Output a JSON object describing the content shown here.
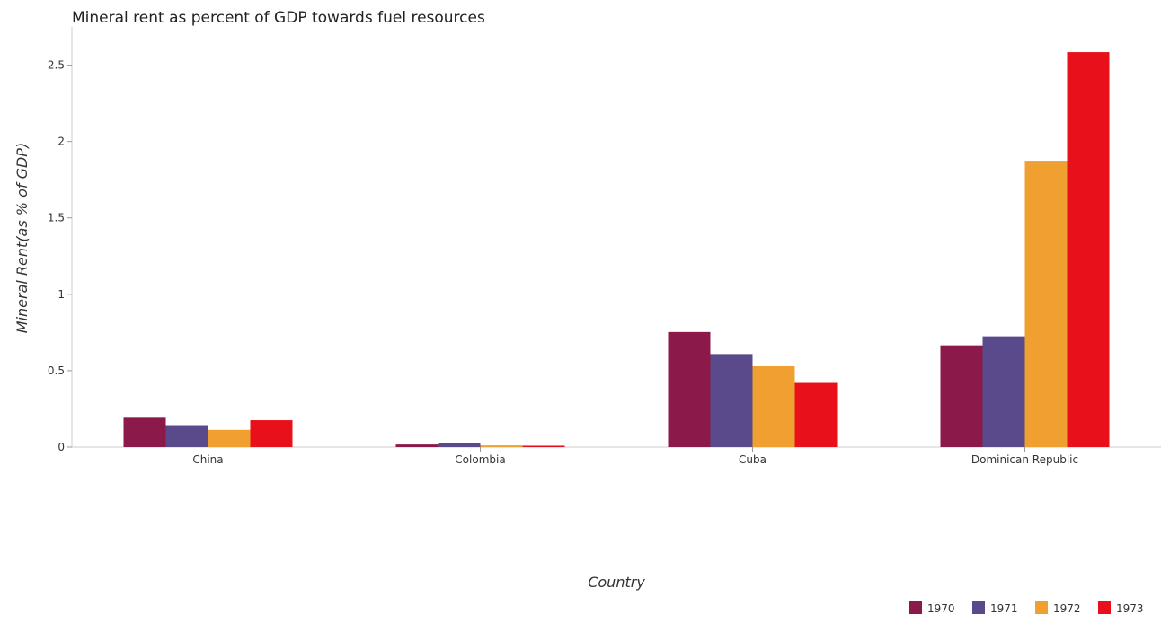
{
  "chart_data": {
    "type": "bar",
    "title": "Mineral rent as percent of GDP towards fuel resources",
    "xlabel": "Country",
    "ylabel": "Mineral Rent(as % of GDP)",
    "categories": [
      "China",
      "Colombia",
      "Cuba",
      "Dominican Republic"
    ],
    "ylim": [
      0,
      2.75
    ],
    "yticks": [
      0,
      0.5,
      1,
      1.5,
      2,
      2.5
    ],
    "ytick_labels": [
      "0",
      "0.5",
      "1",
      "1.5",
      "2",
      "2.5"
    ],
    "grid": false,
    "legend_position": "bottom-right",
    "series": [
      {
        "name": "1970",
        "color": "#8b1a4a",
        "values": [
          0.192,
          0.017,
          0.753,
          0.666
        ]
      },
      {
        "name": "1971",
        "color": "#5b4a8b",
        "values": [
          0.144,
          0.027,
          0.609,
          0.725
        ]
      },
      {
        "name": "1972",
        "color": "#f0a030",
        "values": [
          0.113,
          0.011,
          0.529,
          1.874
        ]
      },
      {
        "name": "1973",
        "color": "#e8101a",
        "values": [
          0.176,
          0.009,
          0.42,
          2.585
        ]
      }
    ]
  }
}
